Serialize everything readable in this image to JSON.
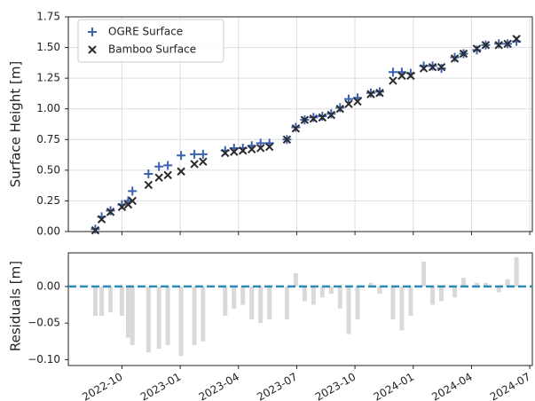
{
  "chart_data": [
    {
      "type": "scatter",
      "ylabel": "Surface Height [m]",
      "x": [
        2022.636,
        2022.663,
        2022.701,
        2022.75,
        2022.777,
        2022.795,
        2022.864,
        2022.909,
        2022.947,
        2023.004,
        2023.061,
        2023.098,
        2023.193,
        2023.231,
        2023.269,
        2023.307,
        2023.345,
        2023.383,
        2023.458,
        2023.496,
        2023.534,
        2023.572,
        2023.61,
        2023.648,
        2023.686,
        2023.723,
        2023.761,
        2023.818,
        2023.856,
        2023.913,
        2023.951,
        2023.989,
        2024.045,
        2024.083,
        2024.121,
        2024.178,
        2024.216,
        2024.273,
        2024.311,
        2024.367,
        2024.405,
        2024.443
      ],
      "series": [
        {
          "name": "OGRE Surface",
          "color": "#3a62b0",
          "marker": "plus",
          "values": [
            0.02,
            0.12,
            0.17,
            0.22,
            0.25,
            0.33,
            0.47,
            0.53,
            0.54,
            0.62,
            0.63,
            0.63,
            0.66,
            0.68,
            0.68,
            0.7,
            0.72,
            0.72,
            0.75,
            0.85,
            0.91,
            0.93,
            0.94,
            0.96,
            1.01,
            1.08,
            1.09,
            1.13,
            1.14,
            1.3,
            1.3,
            1.29,
            1.35,
            1.35,
            1.33,
            1.42,
            1.45,
            1.48,
            1.52,
            1.53,
            1.53,
            1.55
          ]
        },
        {
          "name": "Bamboo Surface",
          "color": "#2b2b2b",
          "marker": "x",
          "values": [
            0.01,
            0.1,
            0.16,
            0.2,
            0.22,
            0.25,
            0.38,
            0.44,
            0.46,
            0.49,
            0.55,
            0.57,
            0.64,
            0.65,
            0.66,
            0.67,
            0.68,
            0.69,
            0.75,
            0.84,
            0.91,
            0.92,
            0.93,
            0.95,
            1.0,
            1.04,
            1.06,
            1.12,
            1.13,
            1.23,
            1.27,
            1.27,
            1.33,
            1.34,
            1.34,
            1.41,
            1.45,
            1.49,
            1.52,
            1.52,
            1.53,
            1.57
          ]
        }
      ],
      "xlim": [
        2022.52,
        2024.511
      ],
      "xticks": [
        2022.75,
        2023.0,
        2023.25,
        2023.5,
        2023.75,
        2024.0,
        2024.25,
        2024.5
      ],
      "ylim": [
        0,
        1.75
      ],
      "yticks": [
        {
          "value": 0,
          "label": "0.00"
        },
        {
          "value": 0.25,
          "label": "0.25"
        },
        {
          "value": 0.5,
          "label": "0.50"
        },
        {
          "value": 0.75,
          "label": "0.75"
        },
        {
          "value": 1,
          "label": "1.00"
        },
        {
          "value": 1.25,
          "label": "1.25"
        },
        {
          "value": 1.5,
          "label": "1.50"
        },
        {
          "value": 1.75,
          "label": "1.75"
        }
      ],
      "grid": true,
      "legend": "upper-left"
    },
    {
      "type": "bar",
      "ylabel": "Residuals [m]",
      "color": "#d9d9d9",
      "hline": 0,
      "hline_color": "#2a8ab8",
      "x": [
        2022.636,
        2022.663,
        2022.701,
        2022.75,
        2022.777,
        2022.795,
        2022.864,
        2022.909,
        2022.947,
        2023.004,
        2023.061,
        2023.098,
        2023.193,
        2023.231,
        2023.269,
        2023.307,
        2023.345,
        2023.383,
        2023.458,
        2023.496,
        2023.534,
        2023.572,
        2023.61,
        2023.648,
        2023.686,
        2023.723,
        2023.761,
        2023.818,
        2023.856,
        2023.913,
        2023.951,
        2023.989,
        2024.045,
        2024.083,
        2024.121,
        2024.178,
        2024.216,
        2024.273,
        2024.311,
        2024.367,
        2024.405,
        2024.443
      ],
      "values": [
        -0.04,
        -0.04,
        -0.035,
        -0.04,
        -0.07,
        -0.08,
        -0.09,
        -0.085,
        -0.08,
        -0.095,
        -0.08,
        -0.075,
        -0.04,
        -0.03,
        -0.025,
        -0.045,
        -0.05,
        -0.045,
        -0.045,
        0.018,
        -0.02,
        -0.025,
        -0.015,
        -0.01,
        -0.03,
        -0.065,
        -0.045,
        0.005,
        -0.01,
        -0.045,
        -0.06,
        -0.04,
        0.034,
        -0.025,
        -0.02,
        -0.015,
        0.012,
        0.005,
        0.005,
        -0.008,
        0.01,
        0.04
      ],
      "xlim": [
        2022.52,
        2024.511
      ],
      "xticks": [
        {
          "value": 2022.75,
          "label": "2022-10"
        },
        {
          "value": 2023.0,
          "label": "2023-01"
        },
        {
          "value": 2023.25,
          "label": "2023-04"
        },
        {
          "value": 2023.5,
          "label": "2023-07"
        },
        {
          "value": 2023.75,
          "label": "2023-10"
        },
        {
          "value": 2024.0,
          "label": "2024-01"
        },
        {
          "value": 2024.25,
          "label": "2024-04"
        },
        {
          "value": 2024.5,
          "label": "2024-07"
        }
      ],
      "ylim": [
        -0.108,
        0.046
      ],
      "yticks": [
        {
          "value": 0,
          "label": "0.00"
        },
        {
          "value": -0.05,
          "label": "−0.05"
        },
        {
          "value": -0.1,
          "label": "−0.10"
        }
      ]
    }
  ]
}
